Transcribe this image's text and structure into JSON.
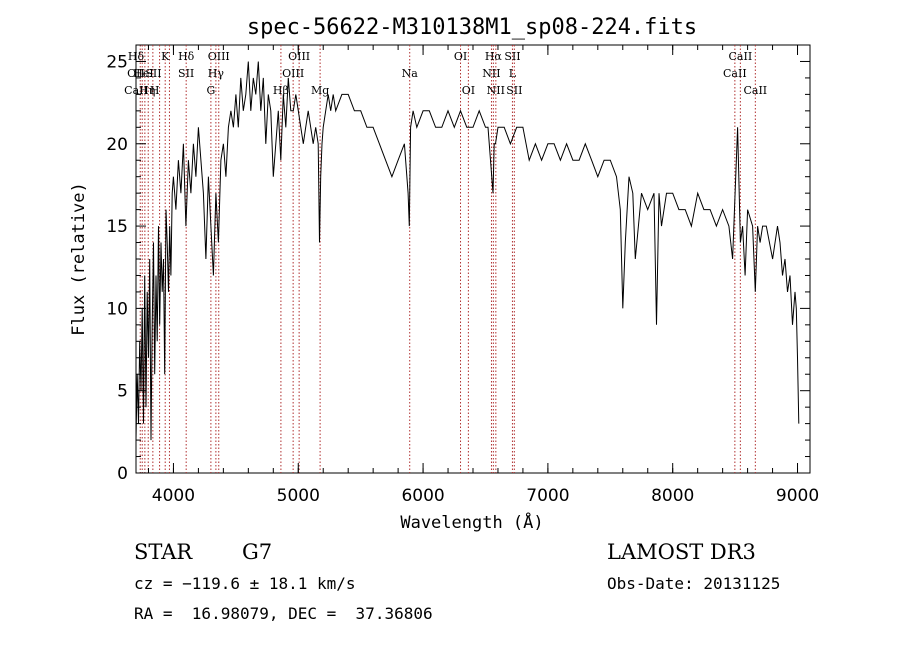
{
  "chart_data": {
    "type": "line",
    "title": "spec-56622-M310138M1_sp08-224.fits",
    "xlabel": "Wavelength (Å)",
    "ylabel": "Flux (relative)",
    "xlim": [
      3700,
      9100
    ],
    "ylim": [
      0,
      26
    ],
    "xticks": [
      4000,
      5000,
      6000,
      7000,
      8000,
      9000
    ],
    "yticks": [
      0,
      5,
      10,
      15,
      20,
      25
    ],
    "grid": false,
    "line_color": "#000000",
    "marker_color": "#b03030",
    "series": [
      {
        "x": [
          3700,
          3710,
          3720,
          3730,
          3740,
          3750,
          3760,
          3770,
          3780,
          3790,
          3800,
          3810,
          3820,
          3830,
          3840,
          3850,
          3860,
          3870,
          3880,
          3890,
          3900,
          3910,
          3920,
          3930,
          3940,
          3950,
          3960,
          3970,
          3980,
          3990,
          4000,
          4020,
          4040,
          4060,
          4080,
          4100,
          4120,
          4140,
          4160,
          4180,
          4200,
          4220,
          4240,
          4260,
          4280,
          4300,
          4320,
          4340,
          4360,
          4380,
          4400,
          4420,
          4440,
          4460,
          4480,
          4500,
          4520,
          4540,
          4560,
          4580,
          4600,
          4620,
          4640,
          4660,
          4680,
          4700,
          4720,
          4740,
          4760,
          4780,
          4800,
          4820,
          4840,
          4860,
          4880,
          4900,
          4920,
          4940,
          4960,
          4980,
          5000,
          5020,
          5040,
          5060,
          5080,
          5100,
          5120,
          5140,
          5160,
          5170,
          5180,
          5190,
          5200,
          5220,
          5240,
          5260,
          5280,
          5300,
          5350,
          5400,
          5450,
          5500,
          5550,
          5600,
          5650,
          5700,
          5750,
          5800,
          5850,
          5880,
          5890,
          5900,
          5920,
          5950,
          6000,
          6050,
          6100,
          6150,
          6200,
          6250,
          6300,
          6350,
          6400,
          6450,
          6500,
          6520,
          6540,
          6560,
          6570,
          6580,
          6600,
          6650,
          6700,
          6750,
          6800,
          6850,
          6900,
          6950,
          7000,
          7050,
          7100,
          7150,
          7200,
          7250,
          7300,
          7350,
          7400,
          7450,
          7500,
          7550,
          7580,
          7600,
          7620,
          7650,
          7680,
          7700,
          7750,
          7800,
          7850,
          7870,
          7890,
          7910,
          7950,
          8000,
          8050,
          8100,
          8150,
          8200,
          8250,
          8300,
          8350,
          8400,
          8450,
          8480,
          8500,
          8520,
          8542,
          8560,
          8580,
          8600,
          8640,
          8662,
          8680,
          8700,
          8720,
          8750,
          8800,
          8840,
          8860,
          8880,
          8900,
          8920,
          8940,
          8960,
          8980,
          8990,
          9000,
          9010
        ],
        "y": [
          2,
          6,
          3,
          8,
          5,
          10,
          3,
          12,
          4,
          11,
          7,
          13,
          2,
          9,
          14,
          6,
          12,
          8,
          15,
          9,
          14,
          11,
          13,
          6,
          16,
          14,
          11,
          15,
          12,
          17,
          18,
          16,
          19,
          17,
          20,
          15,
          19,
          17,
          20,
          18,
          21,
          19,
          17,
          13,
          18,
          15,
          12,
          17,
          14,
          19,
          20,
          18,
          21,
          22,
          21,
          23,
          21,
          24,
          22,
          23,
          25,
          22,
          24,
          23,
          25,
          22,
          24,
          20,
          23,
          22,
          18,
          20,
          22,
          19,
          23,
          21,
          24,
          22,
          22,
          23,
          22,
          21,
          20,
          21,
          22,
          21,
          20,
          21,
          20,
          14,
          18,
          20,
          21,
          22,
          23,
          22,
          23,
          22,
          23,
          23,
          22,
          22,
          21,
          21,
          20,
          19,
          18,
          19,
          20,
          17,
          15,
          21,
          22,
          21,
          22,
          22,
          21,
          21,
          22,
          21,
          22,
          21,
          21,
          22,
          21,
          21,
          19,
          17,
          20,
          20,
          21,
          21,
          20,
          21,
          21,
          19,
          20,
          19,
          20,
          20,
          19,
          20,
          19,
          19,
          20,
          19,
          18,
          19,
          19,
          18,
          16,
          10,
          14,
          18,
          17,
          13,
          17,
          16,
          17,
          9,
          17,
          15,
          17,
          17,
          16,
          16,
          15,
          17,
          16,
          16,
          15,
          16,
          15,
          13,
          17,
          21,
          14,
          15,
          12,
          16,
          15,
          11,
          15,
          14,
          15,
          15,
          13,
          15,
          14,
          12,
          13,
          11,
          12,
          9,
          11,
          10,
          7,
          3
        ]
      }
    ],
    "lines": [
      {
        "x": 3734,
        "label": "CaII"
      },
      {
        "x": 3750,
        "label": "H"
      },
      {
        "x": 3771,
        "label": "H"
      },
      {
        "x": 3798,
        "label": "Hη"
      },
      {
        "x": 3835,
        "label": "Hζ"
      },
      {
        "x": 3889,
        "label": "He I"
      },
      {
        "x": 3934,
        "label": "K"
      },
      {
        "x": 3968,
        "label": "H"
      },
      {
        "x": 4102,
        "label": "Hδ"
      },
      {
        "x": 4300,
        "label": "G"
      },
      {
        "x": 4340,
        "label": "Hγ"
      },
      {
        "x": 4363,
        "label": "OIII"
      },
      {
        "x": 4861,
        "label": "Hβ"
      },
      {
        "x": 4959,
        "label": "OIII"
      },
      {
        "x": 5007,
        "label": "OIII"
      },
      {
        "x": 5175,
        "label": "Mg"
      },
      {
        "x": 5893,
        "label": "Na"
      },
      {
        "x": 6300,
        "label": "OI"
      },
      {
        "x": 6363,
        "label": "OI"
      },
      {
        "x": 6548,
        "label": "NII"
      },
      {
        "x": 6563,
        "label": "Hα"
      },
      {
        "x": 6583,
        "label": "NII"
      },
      {
        "x": 6716,
        "label": "SII"
      },
      {
        "x": 6731,
        "label": "SII"
      },
      {
        "x": 8498,
        "label": "CaII"
      },
      {
        "x": 8542,
        "label": "CaII"
      },
      {
        "x": 8662,
        "label": "CaII"
      }
    ],
    "line_labels": [
      {
        "x": 3700,
        "row": 2,
        "text": "CaII"
      },
      {
        "x": 3700,
        "row": 1,
        "text": "OII"
      },
      {
        "x": 3700,
        "row": 0,
        "text": "Hδ"
      },
      {
        "x": 3760,
        "row": 1,
        "text": "HeI"
      },
      {
        "x": 3790,
        "row": 2,
        "text": "Hη"
      },
      {
        "x": 3840,
        "row": 1,
        "text": "SII"
      },
      {
        "x": 3850,
        "row": 2,
        "text": "H"
      },
      {
        "x": 3934,
        "row": 0,
        "text": "K"
      },
      {
        "x": 4102,
        "row": 0,
        "text": "Hδ"
      },
      {
        "x": 4102,
        "row": 1,
        "text": "SII"
      },
      {
        "x": 4300,
        "row": 2,
        "text": "G"
      },
      {
        "x": 4340,
        "row": 1,
        "text": "Hγ"
      },
      {
        "x": 4363,
        "row": 0,
        "text": "OIII"
      },
      {
        "x": 4861,
        "row": 2,
        "text": "Hβ"
      },
      {
        "x": 4959,
        "row": 1,
        "text": "OIII"
      },
      {
        "x": 5007,
        "row": 0,
        "text": "OIII"
      },
      {
        "x": 5175,
        "row": 2,
        "text": "Mg"
      },
      {
        "x": 5893,
        "row": 1,
        "text": "Na"
      },
      {
        "x": 6300,
        "row": 0,
        "text": "OI"
      },
      {
        "x": 6363,
        "row": 2,
        "text": "OI"
      },
      {
        "x": 6548,
        "row": 1,
        "text": "NII"
      },
      {
        "x": 6563,
        "row": 0,
        "text": "Hα"
      },
      {
        "x": 6583,
        "row": 2,
        "text": "NII"
      },
      {
        "x": 6716,
        "row": 0,
        "text": "SII"
      },
      {
        "x": 6716,
        "row": 1,
        "text": "L"
      },
      {
        "x": 6731,
        "row": 2,
        "text": "SII"
      },
      {
        "x": 8542,
        "row": 0,
        "text": "CaII"
      },
      {
        "x": 8498,
        "row": 1,
        "text": "CaII"
      },
      {
        "x": 8662,
        "row": 2,
        "text": "CaII"
      }
    ]
  },
  "info": {
    "class": "STAR",
    "subclass": "G7",
    "survey": "LAMOST DR3",
    "cz": "cz = −119.6 ± 18.1 km/s",
    "obs_date": "Obs-Date: 20131125",
    "radec": "RA =  16.98079, DEC =  37.36806"
  }
}
